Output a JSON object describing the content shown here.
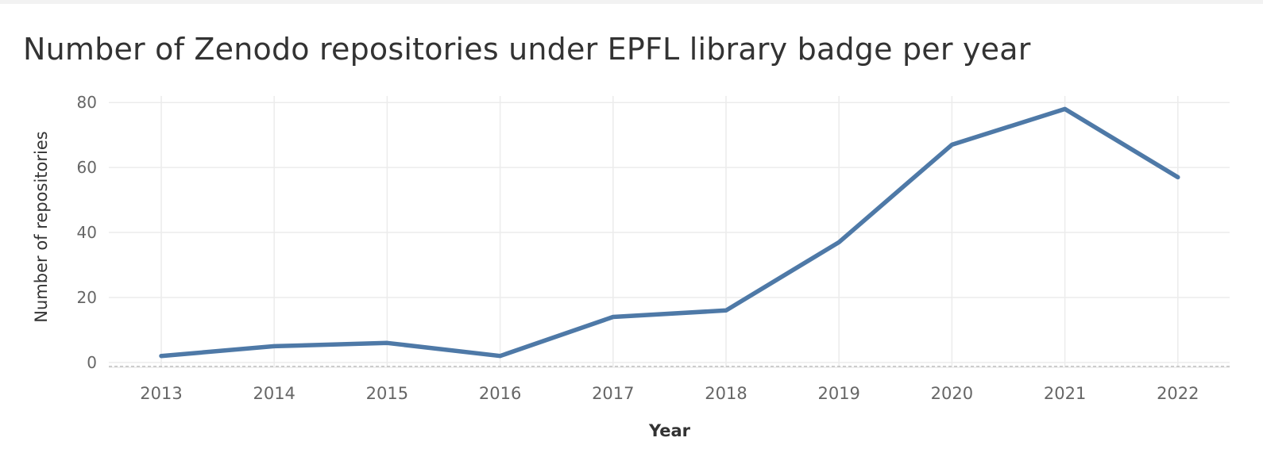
{
  "chart_data": {
    "type": "line",
    "title": "Number of Zenodo repositories under EPFL library badge per year",
    "xlabel": "Year",
    "ylabel": "Number of repositories",
    "categories": [
      "2013",
      "2014",
      "2015",
      "2016",
      "2017",
      "2018",
      "2019",
      "2020",
      "2021",
      "2022"
    ],
    "series": [
      {
        "values": [
          2,
          5,
          6,
          2,
          14,
          16,
          37,
          67,
          78,
          57
        ]
      }
    ],
    "yticks": [
      "0",
      "20",
      "40",
      "60",
      "80"
    ],
    "ylim": [
      -1.5,
      82
    ],
    "grid": true,
    "zero_line": "dashed",
    "line_color": "#4e79a7"
  }
}
